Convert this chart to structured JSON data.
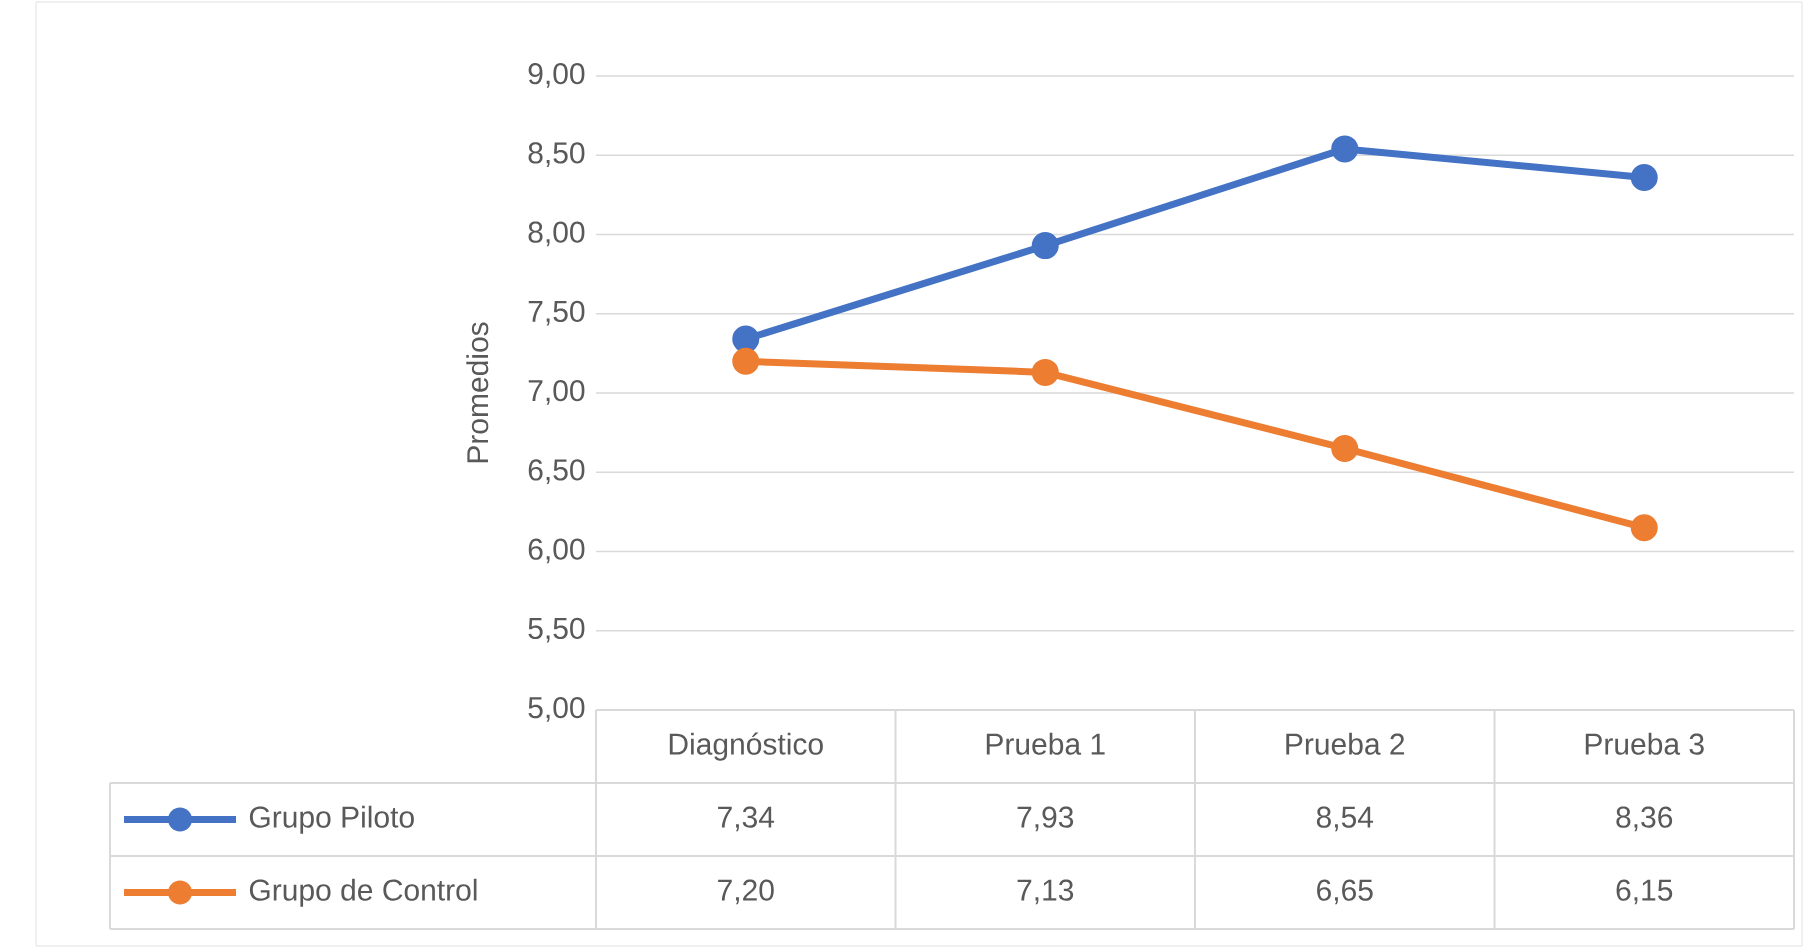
{
  "chart_data": {
    "type": "line",
    "ylabel": "Promedios",
    "categories": [
      "Diagnóstico",
      "Prueba 1",
      "Prueba 2",
      "Prueba 3"
    ],
    "series": [
      {
        "name": "Grupo Piloto",
        "color": "#4472c4",
        "values": [
          7.34,
          7.93,
          8.54,
          8.36
        ],
        "value_labels": [
          "7,34",
          "7,93",
          "8,54",
          "8,36"
        ]
      },
      {
        "name": "Grupo de Control",
        "color": "#ed7d31",
        "values": [
          7.2,
          7.13,
          6.65,
          6.15
        ],
        "value_labels": [
          "7,20",
          "7,13",
          "6,65",
          "6,15"
        ]
      }
    ],
    "ylim": [
      5,
      9
    ],
    "yticks": [
      {
        "value": 5,
        "label": "5,00"
      },
      {
        "value": 5.5,
        "label": "5,50"
      },
      {
        "value": 6,
        "label": "6,00"
      },
      {
        "value": 6.5,
        "label": "6,50"
      },
      {
        "value": 7,
        "label": "7,00"
      },
      {
        "value": 7.5,
        "label": "7,50"
      },
      {
        "value": 8,
        "label": "8,00"
      },
      {
        "value": 8.5,
        "label": "8,50"
      },
      {
        "value": 9,
        "label": "9,00"
      }
    ],
    "grid": "y",
    "legend": "bottom",
    "marker": "circle",
    "line_style": "solid"
  }
}
